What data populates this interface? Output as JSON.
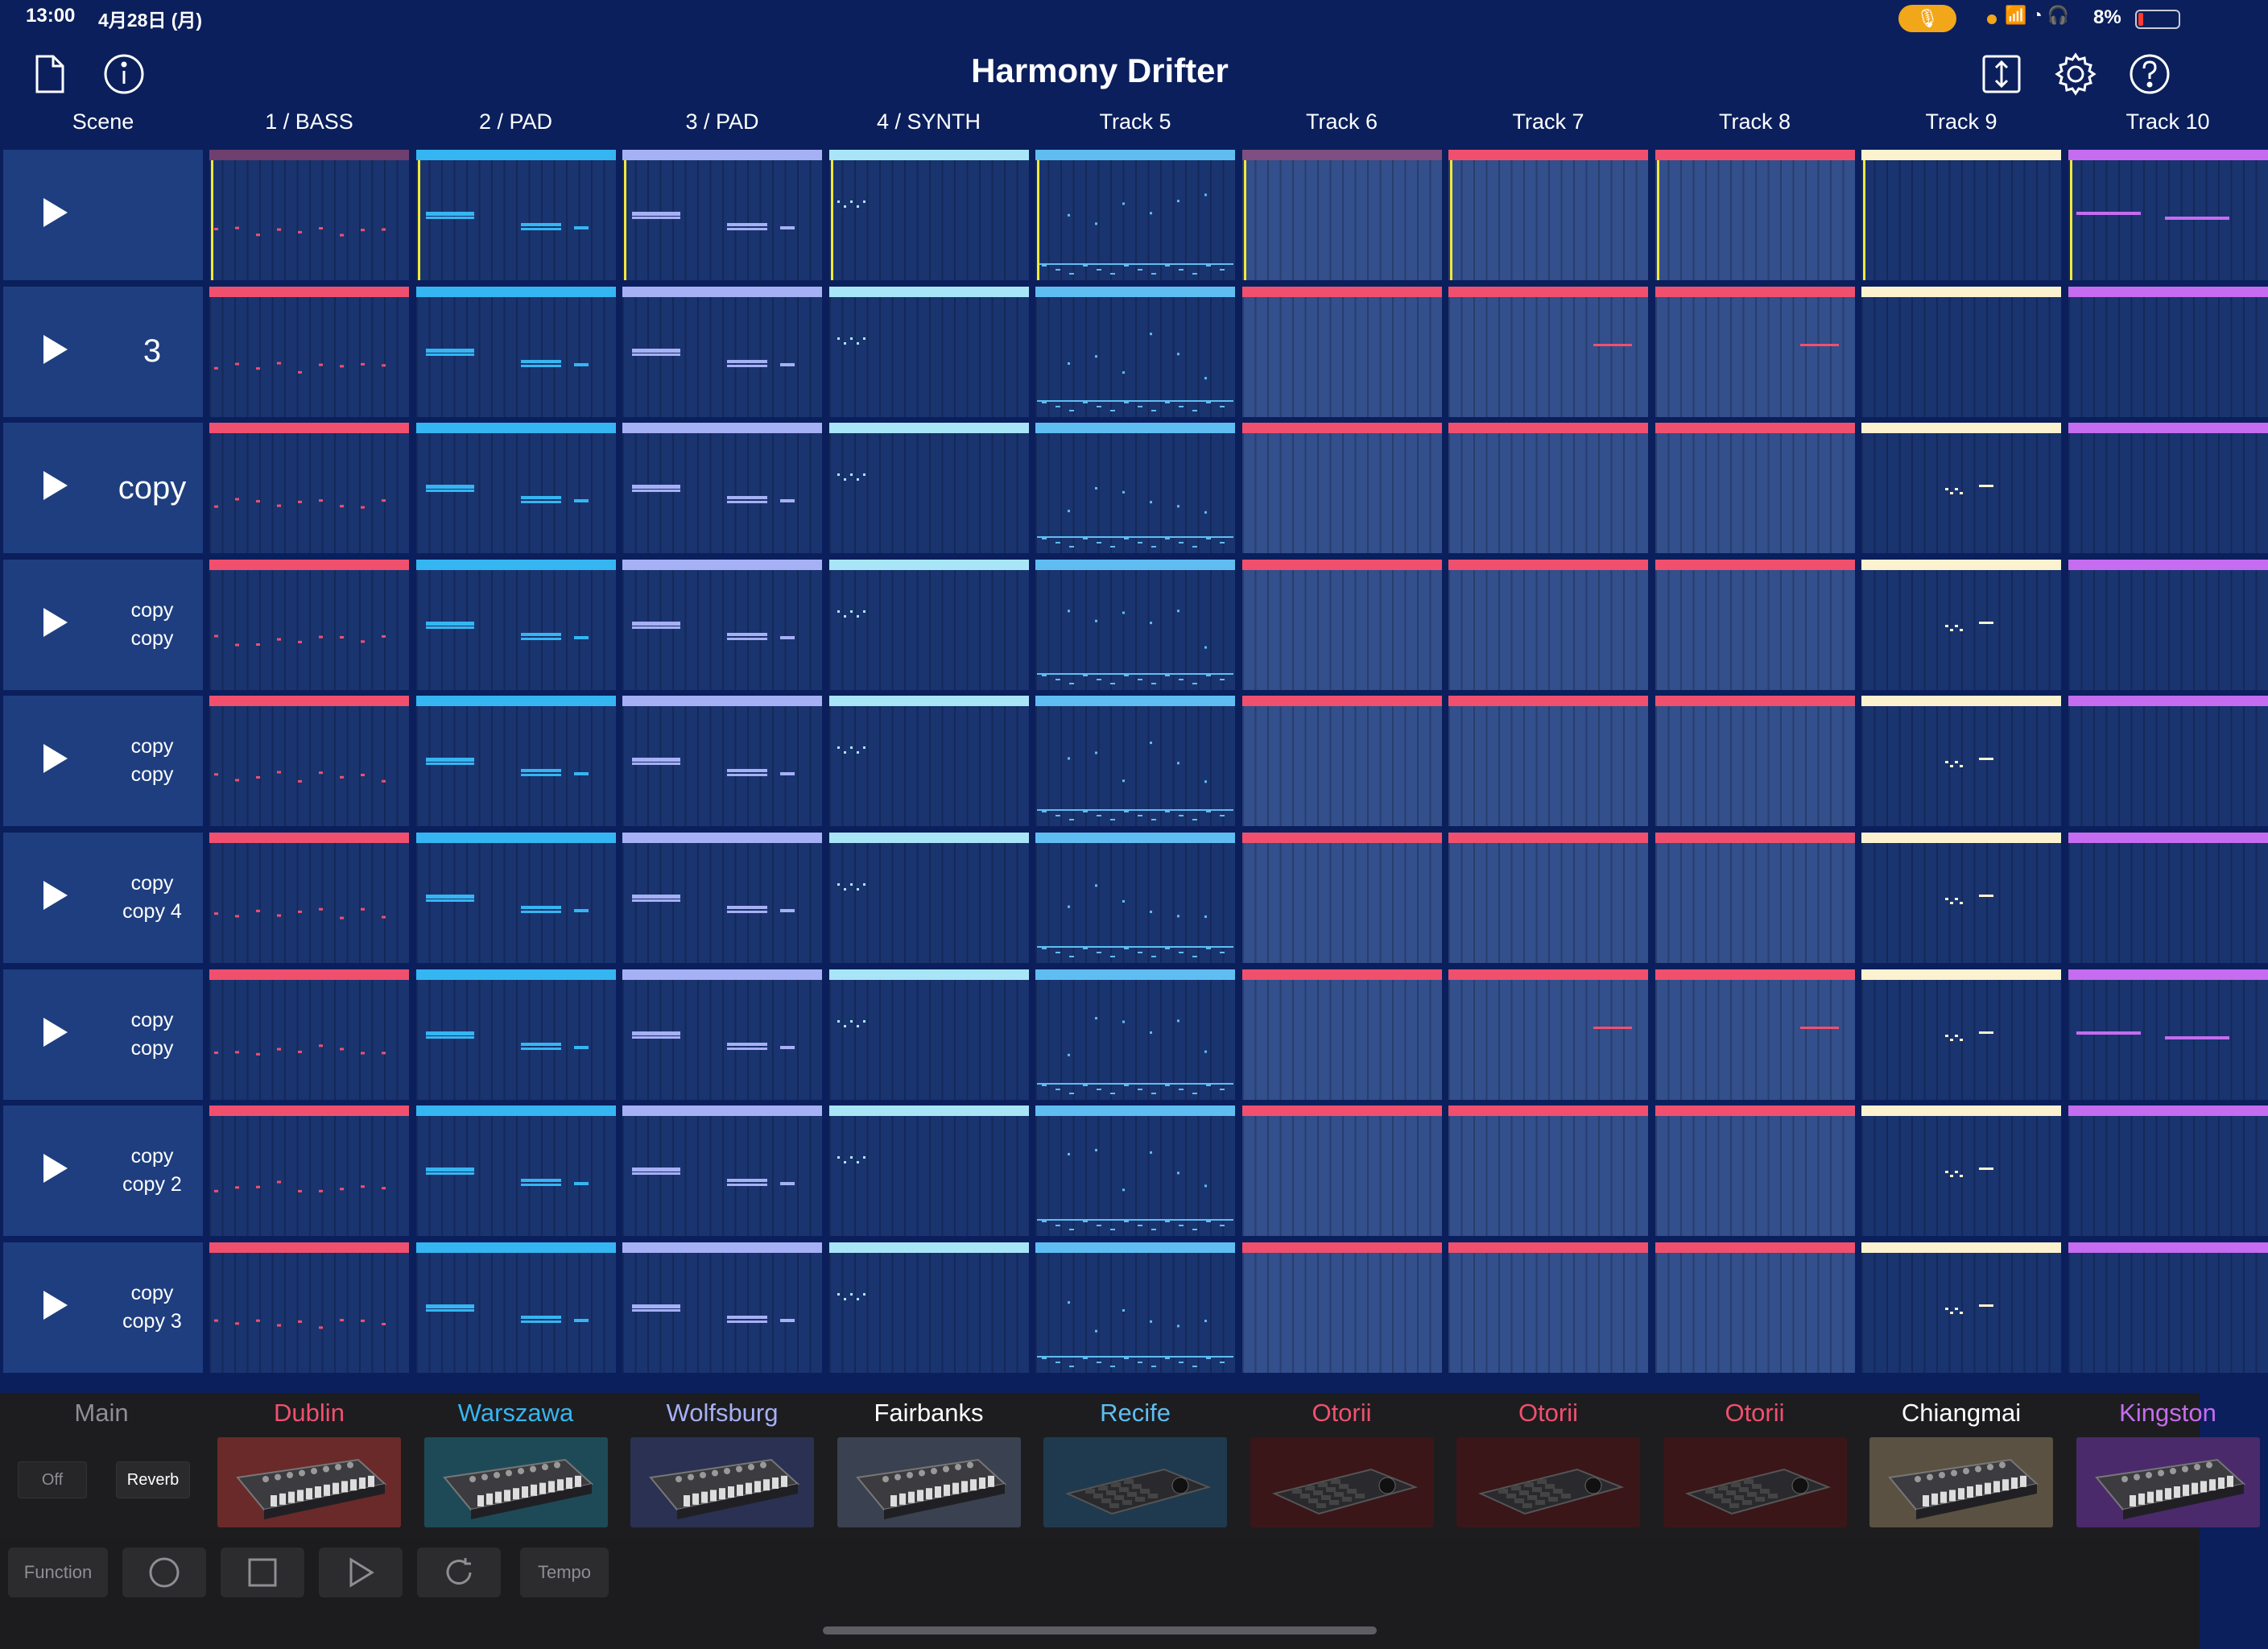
{
  "status_bar": {
    "time": "13:00",
    "date": "4月28日 (月)",
    "battery": "8%",
    "icons": "📶 ◔ 🎧"
  },
  "app": {
    "title": "Harmony Drifter"
  },
  "scene_header": "Scene",
  "tracks": [
    {
      "name": "1 / BASS",
      "color": "#f0506e"
    },
    {
      "name": "2 / PAD",
      "color": "#35b6f2"
    },
    {
      "name": "3 / PAD",
      "color": "#a6b0f5"
    },
    {
      "name": "4 / SYNTH",
      "color": "#a8e6f7"
    },
    {
      "name": "Track 5",
      "color": "#5fbdf2"
    },
    {
      "name": "Track 6",
      "color": "#f0506e"
    },
    {
      "name": "Track 7",
      "color": "#f0506e"
    },
    {
      "name": "Track 8",
      "color": "#f0506e"
    },
    {
      "name": "Track 9",
      "color": "#fdf2cf"
    },
    {
      "name": "Track 10",
      "color": "#c56cf0"
    }
  ],
  "scenes": [
    {
      "lines": []
    },
    {
      "lines": [
        "3"
      ],
      "big": false,
      "bigsize": true
    },
    {
      "lines": [
        "copy"
      ],
      "bigsize": true
    },
    {
      "lines": [
        "copy",
        "copy"
      ]
    },
    {
      "lines": [
        "copy",
        "copy"
      ]
    },
    {
      "lines": [
        "copy",
        "copy 4"
      ]
    },
    {
      "lines": [
        "copy",
        "copy"
      ]
    },
    {
      "lines": [
        "copy",
        "copy 2"
      ]
    },
    {
      "lines": [
        "copy",
        "copy 3"
      ]
    }
  ],
  "main_panel": {
    "title": "Main",
    "off_label": "Off",
    "reverb_label": "Reverb"
  },
  "instruments": [
    {
      "name": "Dublin",
      "color": "#f0506e",
      "thumb_bg": "#6a2a2a",
      "icon": "synth-keyboard-icon"
    },
    {
      "name": "Warszawa",
      "color": "#35b6f2",
      "thumb_bg": "#1e4a58",
      "icon": "synth-keyboard-icon"
    },
    {
      "name": "Wolfsburg",
      "color": "#a6b0f5",
      "thumb_bg": "#2a3152",
      "icon": "synth-keyboard-icon"
    },
    {
      "name": "Fairbanks",
      "color": "#ffffff",
      "thumb_bg": "#3a4150",
      "icon": "synth-keyboard-icon"
    },
    {
      "name": "Recife",
      "color": "#5fbdf2",
      "thumb_bg": "#1f3a4e",
      "icon": "drum-machine-icon"
    },
    {
      "name": "Otorii",
      "color": "#f0506e",
      "thumb_bg": "#3a1618",
      "icon": "drum-machine-icon"
    },
    {
      "name": "Otorii",
      "color": "#f0506e",
      "thumb_bg": "#3a1618",
      "icon": "drum-machine-icon"
    },
    {
      "name": "Otorii",
      "color": "#f0506e",
      "thumb_bg": "#3a1618",
      "icon": "drum-machine-icon"
    },
    {
      "name": "Chiangmai",
      "color": "#ffffff",
      "thumb_bg": "#5a5142",
      "icon": "synth-keyboard-icon"
    },
    {
      "name": "Kingston",
      "color": "#c56cf0",
      "thumb_bg": "#4a2a6a",
      "icon": "synth-keyboard-icon"
    }
  ],
  "transport": {
    "function_label": "Function",
    "tempo_label": "Tempo"
  }
}
